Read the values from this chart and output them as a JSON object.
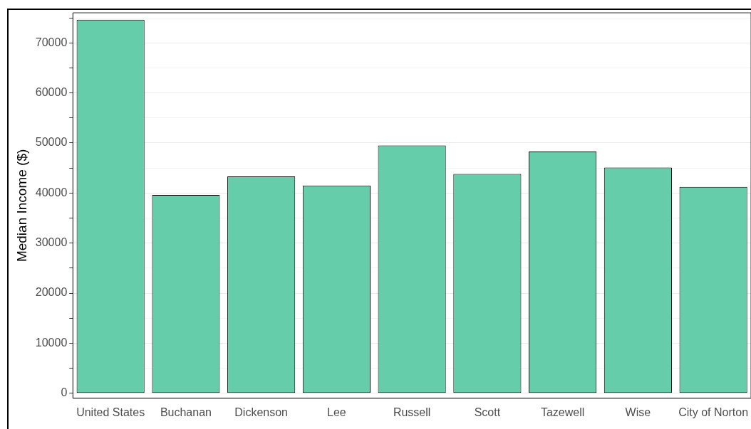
{
  "chart_data": {
    "type": "bar",
    "ylabel": "Median Income ($)",
    "categories": [
      "United States",
      "Buchanan",
      "Dickenson",
      "Lee",
      "Russell",
      "Scott",
      "Tazewell",
      "Wise",
      "City of Norton"
    ],
    "values": [
      74600,
      39600,
      43300,
      41500,
      49500,
      43800,
      48300,
      45100,
      41200
    ],
    "color": "#66cdaa",
    "ylim": [
      -1000,
      76000
    ],
    "yticks": [
      0,
      {
        "value": 5000,
        "label": null
      },
      10000,
      {
        "value": 15000,
        "label": null
      },
      20000,
      {
        "value": 25000,
        "label": null
      },
      30000,
      {
        "value": 35000,
        "label": null
      },
      40000,
      {
        "value": 45000,
        "label": null
      },
      50000,
      {
        "value": 55000,
        "label": null
      },
      60000,
      {
        "value": 65000,
        "label": null
      },
      70000,
      {
        "value": 75000,
        "label": null
      }
    ],
    "grid": true,
    "legend": false
  }
}
